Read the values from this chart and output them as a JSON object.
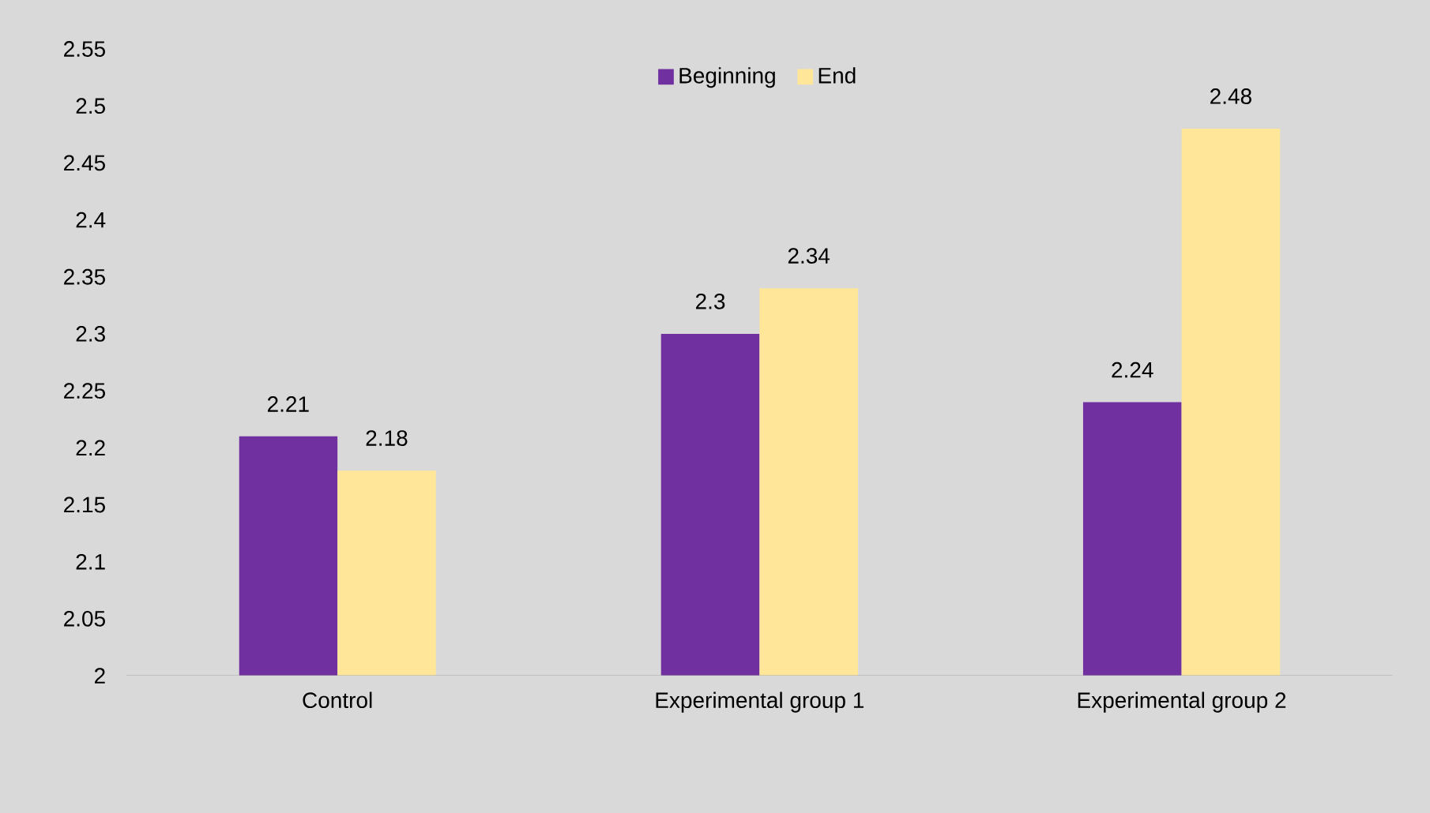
{
  "chart_data": {
    "type": "bar",
    "categories": [
      "Control",
      "Experimental group 1",
      "Experimental group 2"
    ],
    "series": [
      {
        "name": "Beginning",
        "color": "#7030a0",
        "values": [
          2.21,
          2.3,
          2.24
        ]
      },
      {
        "name": "End",
        "color": "#ffe699",
        "values": [
          2.18,
          2.34,
          2.48
        ]
      }
    ],
    "ylim": [
      2,
      2.55
    ],
    "yticks": [
      2,
      2.05,
      2.1,
      2.15,
      2.2,
      2.25,
      2.3,
      2.35,
      2.4,
      2.45,
      2.5,
      2.55
    ],
    "data_labels": true,
    "legend": "top",
    "grid": false
  }
}
